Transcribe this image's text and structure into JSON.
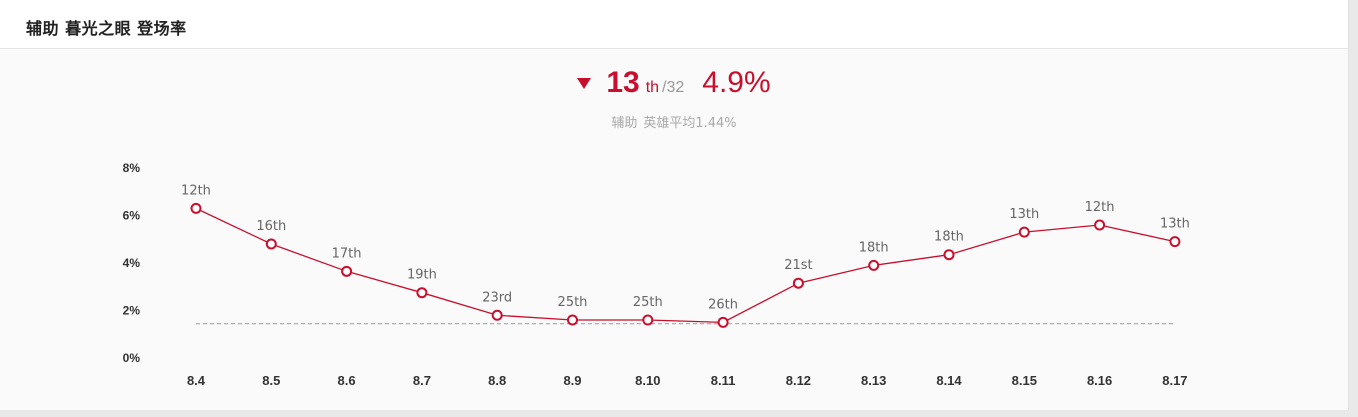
{
  "header": {
    "title": "辅助 暮光之眼 登场率"
  },
  "summary": {
    "rank": "13",
    "rank_suffix": "th",
    "rank_total": "/32",
    "rate": "4.9%",
    "trend": "down",
    "role_label": "辅助",
    "avg_label": "英雄平均1.44%"
  },
  "colors": {
    "accent": "#c8102e",
    "avg_line": "#999999"
  },
  "chart_data": {
    "type": "line",
    "title": "",
    "xlabel": "",
    "ylabel": "",
    "ylim": [
      0,
      8
    ],
    "yticks": [
      "0%",
      "2%",
      "4%",
      "6%",
      "8%"
    ],
    "categories": [
      "8.4",
      "8.5",
      "8.6",
      "8.7",
      "8.8",
      "8.9",
      "8.10",
      "8.11",
      "8.12",
      "8.13",
      "8.14",
      "8.15",
      "8.16",
      "8.17"
    ],
    "series": [
      {
        "values": [
          6.3,
          4.8,
          3.65,
          2.75,
          1.8,
          1.6,
          1.6,
          1.5,
          3.15,
          3.9,
          4.35,
          5.3,
          5.6,
          4.9
        ],
        "labels": [
          "12th",
          "16th",
          "17th",
          "19th",
          "23rd",
          "25th",
          "25th",
          "26th",
          "21st",
          "18th",
          "18th",
          "13th",
          "12th",
          "13th"
        ]
      }
    ],
    "reference_line": {
      "value": 1.44,
      "style": "dashed"
    },
    "grid": false,
    "legend": "none"
  }
}
